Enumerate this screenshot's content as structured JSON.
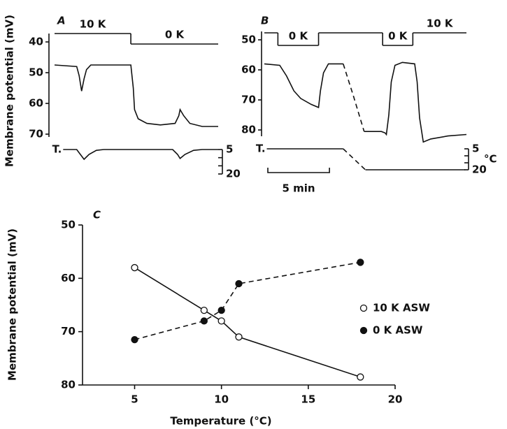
{
  "chart_data": [
    {
      "type": "trace",
      "panel": "A",
      "y_label": "Membrane potential (mV)",
      "ylim": [
        40,
        70
      ],
      "yticks": [
        40,
        50,
        60,
        70
      ],
      "xlim": [
        0,
        13.3
      ],
      "x": [
        0,
        1.8,
        2.0,
        2.2,
        2.4,
        2.6,
        2.95,
        6.2,
        6.4,
        6.5,
        6.8,
        7.5,
        8.6,
        9.8,
        10.1,
        10.2,
        10.5,
        11.0,
        12.0,
        13.3
      ],
      "series": [
        {
          "color": "#111111",
          "dash": false,
          "values": [
            47.5,
            48,
            51,
            56,
            52,
            49,
            47.5,
            47.5,
            55,
            62,
            65,
            66.5,
            67,
            66.5,
            64,
            62,
            64,
            66.5,
            67.5,
            67.5
          ]
        }
      ],
      "temperature": {
        "label": "T.",
        "y2lim": [
          5,
          20
        ],
        "y2ticks": [
          5,
          20
        ],
        "y2minor_ticks": [
          10,
          15
        ],
        "x": [
          0.7,
          1.8,
          2.1,
          2.4,
          2.8,
          3.4,
          4.0,
          9.6,
          10.0,
          10.2,
          10.6,
          11.3,
          12.0,
          13.3
        ],
        "series": [
          {
            "dash": false,
            "values": [
              5,
              5,
              8,
              11,
              8,
              5.5,
              5,
              5,
              8,
              10.5,
              8,
              5.5,
              5,
              5
            ]
          }
        ]
      },
      "stimulus": [
        {
          "label": "10 K",
          "value": 10,
          "start": 0,
          "end": 6.2
        },
        {
          "label": "0 K",
          "value": 0,
          "start": 6.2,
          "end": 13.3
        }
      ]
    },
    {
      "type": "trace",
      "panel": "B",
      "ylim": [
        50,
        80
      ],
      "yticks": [
        50,
        60,
        70,
        80
      ],
      "xlim": [
        0,
        16.4
      ],
      "x": [
        0,
        1.25,
        1.8,
        2.4,
        2.95,
        3.8,
        4.4,
        4.55,
        4.8,
        5.2,
        6.4,
        7.25,
        8.1,
        9.5,
        9.8,
        9.9,
        10.1,
        10.3,
        10.6,
        11.2,
        12.2,
        12.4,
        12.6,
        12.9,
        13.5,
        14.9,
        16.4
      ],
      "series": [
        {
          "color": "#111111",
          "dash": false,
          "values": [
            58,
            58.5,
            62,
            67,
            69.5,
            71.5,
            72.5,
            67,
            61,
            58,
            58,
            null,
            80.5,
            80.5,
            81,
            81.5,
            75,
            64,
            58.5,
            57.5,
            58,
            64,
            76,
            84,
            83,
            82,
            81.5
          ]
        },
        {
          "color": "#111111",
          "dash": true,
          "values": [
            null,
            null,
            null,
            null,
            null,
            null,
            null,
            null,
            null,
            null,
            58,
            69,
            80.5,
            null,
            null,
            null,
            null,
            null,
            null,
            null,
            null,
            null,
            null,
            null,
            null,
            null,
            null
          ]
        }
      ],
      "temperature": {
        "label": "T.",
        "y2lim": [
          5,
          20
        ],
        "y2ticks": [
          5,
          20
        ],
        "y2minor_ticks": [
          10,
          15
        ],
        "y2_label": "°C",
        "x": [
          0.2,
          6.4,
          7.3,
          8.2,
          16.3
        ],
        "series": [
          {
            "dash": false,
            "values": [
              5,
              5,
              null,
              20,
              20
            ]
          },
          {
            "dash": true,
            "values": [
              null,
              5,
              12.5,
              20,
              null
            ]
          }
        ]
      },
      "stimulus": [
        {
          "label": null,
          "value": 10,
          "start": 0,
          "end": 1.1
        },
        {
          "label": "0 K",
          "value": 0,
          "start": 1.1,
          "end": 4.4
        },
        {
          "label": null,
          "value": 10,
          "start": 4.4,
          "end": 9.6
        },
        {
          "label": "0 K",
          "value": 0,
          "start": 9.6,
          "end": 12.05
        },
        {
          "label": "10 K",
          "value": 10,
          "start": 12.05,
          "end": 16.4
        }
      ],
      "scale_bar": {
        "value": 5,
        "label": "5 min"
      }
    },
    {
      "type": "line",
      "panel": "C",
      "y_label": "Membrane potential (mV)",
      "x_label": "Temperature (°C)",
      "xlim": [
        2,
        20
      ],
      "xticks": [
        5,
        10,
        15,
        20
      ],
      "ylim": [
        50,
        80
      ],
      "yticks": [
        50,
        60,
        70,
        80
      ],
      "legend": "right",
      "x": [
        5,
        9,
        10,
        11,
        18
      ],
      "series": [
        {
          "name": "10 K ASW",
          "color": "#111111",
          "marker": "open",
          "dash": false,
          "values": [
            58,
            66,
            68,
            71,
            78.5
          ]
        },
        {
          "name": "0 K ASW",
          "color": "#111111",
          "marker": "filled",
          "dash": true,
          "values": [
            71.5,
            68,
            66,
            61,
            57
          ]
        }
      ]
    }
  ]
}
